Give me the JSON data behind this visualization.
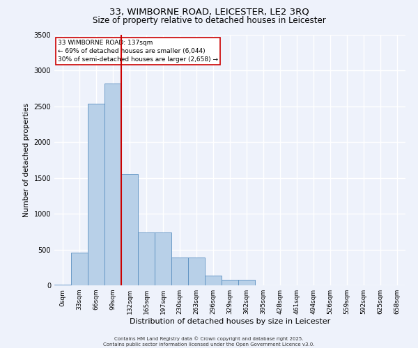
{
  "title1": "33, WIMBORNE ROAD, LEICESTER, LE2 3RQ",
  "title2": "Size of property relative to detached houses in Leicester",
  "xlabel": "Distribution of detached houses by size in Leicester",
  "ylabel": "Number of detached properties",
  "annotation_title": "33 WIMBORNE ROAD: 137sqm",
  "annotation_line1": "← 69% of detached houses are smaller (6,044)",
  "annotation_line2": "30% of semi-detached houses are larger (2,658) →",
  "footer1": "Contains HM Land Registry data © Crown copyright and database right 2025.",
  "footer2": "Contains public sector information licensed under the Open Government Licence v3.0.",
  "bar_labels": [
    "0sqm",
    "33sqm",
    "66sqm",
    "99sqm",
    "132sqm",
    "165sqm",
    "197sqm",
    "230sqm",
    "263sqm",
    "296sqm",
    "329sqm",
    "362sqm",
    "395sqm",
    "428sqm",
    "461sqm",
    "494sqm",
    "526sqm",
    "559sqm",
    "592sqm",
    "625sqm",
    "658sqm"
  ],
  "bar_values": [
    5,
    460,
    2540,
    2820,
    1560,
    740,
    740,
    390,
    390,
    140,
    80,
    80,
    0,
    0,
    0,
    0,
    0,
    0,
    0,
    0,
    0
  ],
  "bar_color": "#b8d0e8",
  "bar_edge_color": "#5a8fc0",
  "highlight_line_color": "#cc0000",
  "annotation_box_color": "#cc0000",
  "ylim": [
    0,
    3500
  ],
  "yticks": [
    0,
    500,
    1000,
    1500,
    2000,
    2500,
    3000,
    3500
  ],
  "bg_color": "#eef2fb",
  "grid_color": "#ffffff",
  "title_fontsize": 9.5,
  "subtitle_fontsize": 8.5,
  "axis_label_fontsize": 7.5,
  "tick_fontsize": 6.5,
  "annotation_fontsize": 6.5,
  "footer_fontsize": 5.0
}
